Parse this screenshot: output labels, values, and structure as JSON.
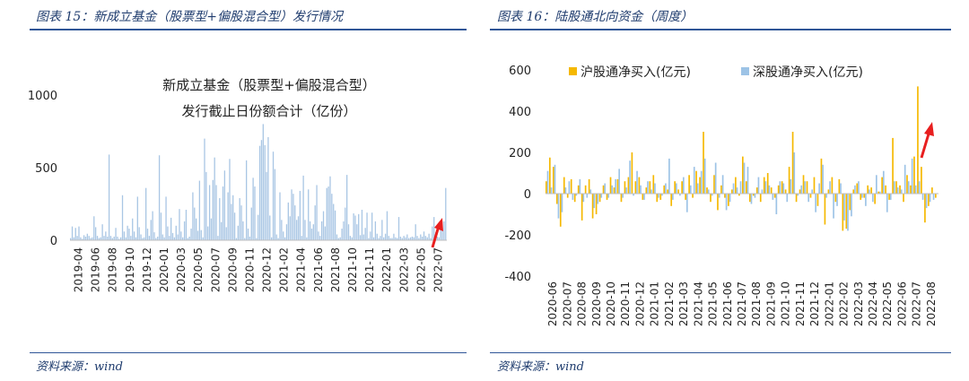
{
  "left": {
    "figure_title": "图表 15：新成立基金（股票型+偏股混合型）发行情况",
    "source": "资料来源：wind",
    "colors": {
      "bar": "#a9c6e4",
      "arrow": "#e81f1f",
      "rule": "#2f5597"
    },
    "chart_data": {
      "type": "bar",
      "title_lines": [
        "新成立基金（股票型+偏股混合型）",
        "发行截止日份额合计（亿份）"
      ],
      "title": "新成立基金（股票型+偏股混合型）发行截止日份额合计（亿份）",
      "xlabel": "",
      "ylabel": "",
      "ylim": [
        0,
        1000
      ],
      "y_ticks": [
        0,
        500,
        1000
      ],
      "x_tick_labels": [
        "2019-04",
        "2019-06",
        "2019-08",
        "2019-10",
        "2019-12",
        "2020-01",
        "2020-03",
        "2020-05",
        "2020-07",
        "2020-09",
        "2020-11",
        "2020-12",
        "2021-02",
        "2021-04",
        "2021-06",
        "2021-08",
        "2021-10",
        "2021-11",
        "2022-01",
        "2022-03",
        "2022-05",
        "2022-07"
      ],
      "values": [
        15,
        95,
        20,
        85,
        30,
        95,
        20,
        10,
        35,
        25,
        45,
        30,
        15,
        20,
        165,
        90,
        30,
        15,
        20,
        110,
        30,
        60,
        25,
        590,
        30,
        15,
        25,
        85,
        25,
        10,
        20,
        310,
        60,
        20,
        100,
        80,
        30,
        150,
        60,
        20,
        300,
        90,
        40,
        15,
        20,
        360,
        80,
        30,
        140,
        200,
        55,
        15,
        25,
        585,
        190,
        40,
        20,
        300,
        95,
        30,
        155,
        50,
        20,
        100,
        40,
        215,
        60,
        20,
        130,
        210,
        15,
        25,
        80,
        330,
        225,
        150,
        65,
        410,
        70,
        20,
        700,
        470,
        95,
        380,
        150,
        415,
        570,
        380,
        30,
        290,
        125,
        370,
        480,
        90,
        330,
        560,
        250,
        310,
        190,
        15,
        100,
        290,
        240,
        130,
        15,
        550,
        80,
        25,
        225,
        430,
        370,
        15,
        175,
        650,
        690,
        800,
        655,
        470,
        710,
        170,
        20,
        610,
        490,
        40,
        15,
        330,
        140,
        60,
        20,
        110,
        260,
        165,
        350,
        320,
        240,
        140,
        165,
        340,
        30,
        445,
        140,
        20,
        350,
        130,
        80,
        110,
        240,
        380,
        60,
        30,
        130,
        200,
        95,
        360,
        370,
        440,
        320,
        250,
        205,
        40,
        15,
        20,
        80,
        130,
        225,
        450,
        110,
        30,
        20,
        185,
        170,
        110,
        180,
        35,
        210,
        40,
        85,
        190,
        15,
        60,
        190,
        20,
        130,
        45,
        15,
        30,
        140,
        20,
        45,
        200,
        30,
        15,
        15,
        45,
        20,
        15,
        160,
        25,
        15,
        30,
        20,
        40,
        15,
        20,
        25,
        20,
        110,
        30,
        15,
        40,
        25,
        60,
        30,
        20,
        45,
        15,
        95,
        160,
        55,
        25,
        20,
        80,
        70,
        130,
        360
      ],
      "annotation": "red arrow pointing up-right at the latest bars"
    }
  },
  "right": {
    "figure_title": "图表 16：陆股通北向资金（周度）",
    "source": "资料来源：wind",
    "colors": {
      "sh": "#f5b800",
      "sz": "#9dc3e6",
      "rule": "#2f5597",
      "arrow": "#e81f1f"
    },
    "chart_data": {
      "type": "bar",
      "title": "",
      "xlabel": "",
      "ylabel": "",
      "ylim": [
        -400,
        600
      ],
      "y_ticks": [
        -400,
        -200,
        0,
        200,
        400,
        600
      ],
      "legend_position": "top",
      "x_tick_labels": [
        "2020-06",
        "2020-07",
        "2020-08",
        "2020-09",
        "2020-10",
        "2020-11",
        "2020-12",
        "2021-01",
        "2021-02",
        "2021-03",
        "2021-04",
        "2021-05",
        "2021-06",
        "2021-07",
        "2021-08",
        "2021-09",
        "2021-10",
        "2021-11",
        "2021-12",
        "2022-01",
        "2022-02",
        "2022-03",
        "2022-04",
        "2022-05",
        "2022-06",
        "2022-07",
        "2022-08"
      ],
      "series": [
        {
          "name": "沪股通净买入(亿元)",
          "values": [
            60,
            175,
            130,
            -50,
            -160,
            80,
            -20,
            70,
            -40,
            40,
            -130,
            40,
            70,
            -120,
            -100,
            -40,
            40,
            -30,
            80,
            30,
            70,
            -40,
            60,
            80,
            200,
            60,
            80,
            -30,
            30,
            60,
            90,
            -40,
            -30,
            40,
            20,
            -60,
            60,
            20,
            60,
            -30,
            90,
            -20,
            110,
            80,
            300,
            30,
            -40,
            90,
            -80,
            40,
            -20,
            -60,
            20,
            80,
            -10,
            180,
            60,
            -40,
            -10,
            30,
            -40,
            80,
            100,
            30,
            -20,
            40,
            60,
            20,
            130,
            300,
            -40,
            20,
            90,
            60,
            -20,
            80,
            -60,
            170,
            -150,
            20,
            80,
            -40,
            70,
            -180,
            -170,
            -80,
            20,
            50,
            -30,
            -20,
            40,
            30,
            -50,
            10,
            80,
            40,
            -30,
            270,
            60,
            40,
            -40,
            90,
            40,
            180,
            520,
            130,
            -140,
            -60,
            30,
            -20
          ]
        },
        {
          "name": "深股通净买入(亿元)",
          "values": [
            110,
            30,
            140,
            -120,
            -90,
            30,
            60,
            -30,
            -10,
            70,
            -40,
            -20,
            20,
            -70,
            -50,
            -20,
            50,
            -20,
            40,
            70,
            120,
            -20,
            30,
            160,
            -10,
            110,
            40,
            -30,
            60,
            20,
            50,
            -20,
            -10,
            50,
            170,
            -30,
            50,
            -10,
            80,
            -90,
            40,
            130,
            50,
            110,
            170,
            20,
            -10,
            150,
            -20,
            90,
            -80,
            -40,
            50,
            30,
            60,
            150,
            130,
            -50,
            -20,
            80,
            20,
            60,
            40,
            -30,
            -100,
            60,
            50,
            -40,
            70,
            200,
            -10,
            40,
            60,
            -40,
            20,
            -90,
            50,
            140,
            -20,
            60,
            -120,
            -60,
            50,
            -130,
            -180,
            -110,
            40,
            60,
            -20,
            -60,
            20,
            -40,
            90,
            10,
            110,
            -90,
            -30,
            60,
            30,
            20,
            140,
            60,
            170,
            40,
            60,
            -30,
            -70,
            -40,
            -30
          ]
        }
      ],
      "annotation": "red arrow pointing up-right at the July 2022 spike"
    }
  }
}
